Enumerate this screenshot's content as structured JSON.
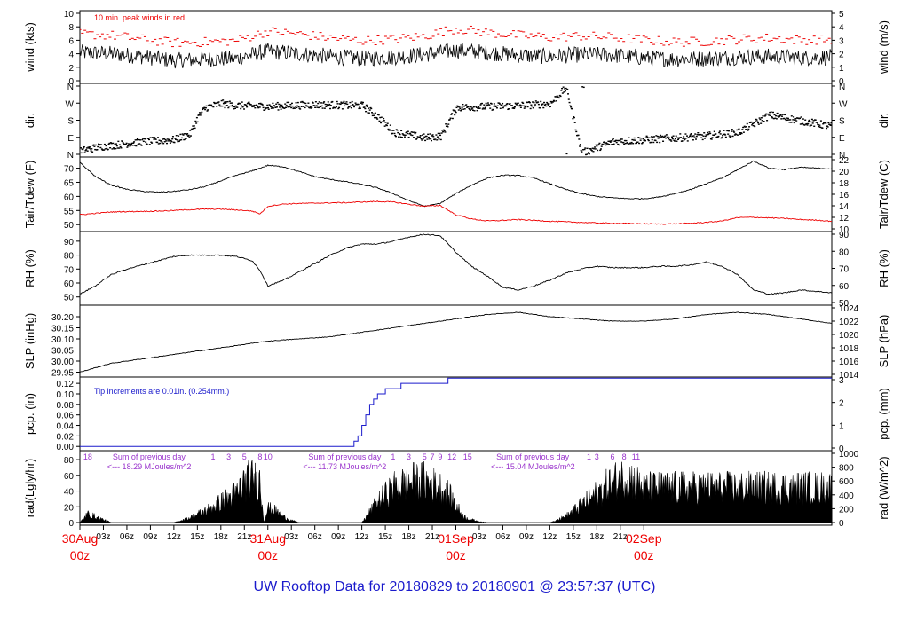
{
  "title": "UW Rooftop Data for 20180829  to  20180901 @ 23:57:37  (UTC)",
  "colors": {
    "black": "#000000",
    "red": "#ee0000",
    "blue": "#1a1acc",
    "purple": "#9933cc"
  },
  "chart_data": {
    "type": "line",
    "x_range_hours": [
      0,
      96
    ],
    "x_tick_labels": [
      "03z",
      "06z",
      "09z",
      "12z",
      "15z",
      "18z",
      "21z",
      "03z",
      "06z",
      "09z",
      "12z",
      "15z",
      "18z",
      "21z",
      "03z",
      "06z",
      "09z",
      "12z",
      "15z",
      "18z",
      "21z"
    ],
    "x_tick_hours": [
      3,
      6,
      9,
      12,
      15,
      18,
      21,
      27,
      30,
      33,
      36,
      39,
      42,
      45,
      51,
      54,
      57,
      60,
      63,
      66,
      69
    ],
    "day_labels": [
      {
        "date": "30Aug",
        "hour": "00z",
        "at": 0
      },
      {
        "date": "31Aug",
        "hour": "00z",
        "at": 24
      },
      {
        "date": "01Sep",
        "hour": "00z",
        "at": 48
      },
      {
        "date": "02Sep",
        "hour": "00z",
        "at": 72
      }
    ],
    "panels": [
      {
        "id": "wind",
        "left_label": "wind (kts)",
        "right_label": "wind (m/s)",
        "left_ticks": [
          "0",
          "2",
          "4",
          "6",
          "8",
          "10"
        ],
        "left_range": [
          0,
          10
        ],
        "right_ticks": [
          "0",
          "1",
          "2",
          "3",
          "4",
          "5"
        ],
        "annotation": "10 min. peak winds in red",
        "series": [
          {
            "name": "wind speed",
            "color": "#000000",
            "x": [
              0,
              4,
              8,
              12,
              16,
              20,
              24,
              28,
              32,
              36,
              40,
              44,
              48,
              52,
              56,
              60,
              64,
              68,
              72,
              76,
              80,
              84,
              88,
              92,
              96
            ],
            "y": [
              4.2,
              4.0,
              3.6,
              3.0,
              3.2,
              3.3,
              4.4,
              4.0,
              3.6,
              3.3,
              3.5,
              3.9,
              4.5,
              4.2,
              3.8,
              3.6,
              3.9,
              3.8,
              3.4,
              3.2,
              3.3,
              3.5,
              3.6,
              3.4,
              3.5
            ]
          },
          {
            "name": "10 min. peak",
            "color": "#ee0000",
            "x": [
              0,
              4,
              8,
              12,
              16,
              20,
              24,
              28,
              32,
              36,
              40,
              44,
              48,
              52,
              56,
              60,
              64,
              68,
              72,
              76,
              80,
              84,
              88,
              92,
              96
            ],
            "y": [
              6.8,
              6.6,
              6.0,
              5.5,
              5.6,
              5.8,
              7.2,
              6.8,
              6.2,
              5.8,
              6.0,
              6.5,
              7.6,
              7.0,
              6.6,
              6.3,
              6.5,
              6.3,
              5.9,
              5.6,
              5.7,
              6.0,
              6.2,
              5.9,
              6.0
            ]
          }
        ]
      },
      {
        "id": "dir",
        "left_label": "dir.",
        "right_label": "dir.",
        "left_ticks": [
          "N",
          "E",
          "S",
          "W",
          "N"
        ],
        "left_range": [
          0,
          360
        ],
        "right_ticks": [
          "N",
          "E",
          "S",
          "W",
          "N"
        ],
        "series": [
          {
            "name": "wind direction",
            "color": "#000000",
            "x": [
              0,
              2,
              4,
              8,
              12,
              14,
              15,
              16,
              18,
              20,
              24,
              30,
              36,
              38,
              40,
              44,
              46,
              48,
              52,
              56,
              58,
              60,
              62,
              64,
              68,
              72,
              76,
              80,
              84,
              88,
              92,
              96
            ],
            "y": [
              20,
              40,
              50,
              70,
              80,
              110,
              200,
              250,
              270,
              260,
              255,
              265,
              260,
              200,
              120,
              90,
              100,
              250,
              255,
              260,
              265,
              270,
              355,
              10,
              70,
              80,
              90,
              100,
              120,
              210,
              180,
              150
            ]
          }
        ]
      },
      {
        "id": "temp",
        "left_label": "Tair/Tdew (F)",
        "right_label": "Tair/Tdew (C)",
        "left_ticks": [
          "50",
          "55",
          "60",
          "65",
          "70"
        ],
        "left_range": [
          48.5,
          73
        ],
        "right_ticks": [
          "10",
          "12",
          "14",
          "16",
          "18",
          "20",
          "22"
        ],
        "series": [
          {
            "name": "Tair",
            "color": "#000000",
            "x": [
              0,
              2,
              4,
              6,
              8,
              10,
              12,
              14,
              16,
              18,
              20,
              22,
              24,
              26,
              28,
              30,
              32,
              34,
              36,
              38,
              40,
              42,
              44,
              46,
              48,
              50,
              52,
              54,
              56,
              58,
              60,
              62,
              64,
              66,
              68,
              70,
              72,
              74,
              76,
              78,
              80,
              82,
              84,
              86,
              88,
              90,
              92,
              94,
              96
            ],
            "y": [
              72,
              67,
              64,
              62.5,
              61.8,
              61.5,
              61.8,
              62.4,
              63.5,
              65.5,
              67.5,
              69,
              71,
              70.5,
              68.8,
              67,
              66,
              65.2,
              64.2,
              63,
              61,
              58.5,
              56.5,
              57.5,
              61,
              64,
              66.5,
              67.5,
              67.4,
              66.5,
              64.5,
              62.5,
              61,
              60,
              59.5,
              59.2,
              59.2,
              59.8,
              61,
              62.5,
              64.5,
              66.5,
              69.5,
              72.5,
              70,
              69.5,
              70.3,
              70,
              69.8
            ]
          },
          {
            "name": "Tdew",
            "color": "#ee0000",
            "x": [
              0,
              2,
              4,
              6,
              8,
              10,
              12,
              14,
              16,
              18,
              20,
              22,
              23,
              24,
              26,
              28,
              30,
              32,
              34,
              36,
              38,
              40,
              42,
              44,
              46,
              48,
              50,
              52,
              54,
              56,
              58,
              60,
              62,
              64,
              66,
              68,
              70,
              72,
              74,
              76,
              78,
              80,
              82,
              84,
              86,
              88,
              90,
              92,
              94,
              96
            ],
            "y": [
              53.5,
              54,
              54.5,
              54.6,
              54.7,
              54.8,
              55,
              55.3,
              55.5,
              55.5,
              55.2,
              54.8,
              53.8,
              56.5,
              57.3,
              57.5,
              57.6,
              57.7,
              57.8,
              58,
              58.2,
              58,
              57.2,
              56.5,
              56.8,
              53.5,
              52,
              51.3,
              51.5,
              51.8,
              51.5,
              51.2,
              51,
              50.8,
              50.6,
              50.5,
              50.4,
              50.3,
              50.2,
              50.3,
              50.5,
              50.8,
              51.3,
              52.5,
              52.6,
              52.4,
              52.2,
              51.8,
              51.6,
              51.2
            ]
          }
        ]
      },
      {
        "id": "rh",
        "left_label": "RH (%)",
        "right_label": "RH (%)",
        "left_ticks": [
          "50",
          "60",
          "70",
          "80",
          "90"
        ],
        "left_range": [
          46,
          95
        ],
        "right_ticks": [
          "50",
          "60",
          "70",
          "80",
          "90"
        ],
        "series": [
          {
            "name": "RH",
            "color": "#000000",
            "x": [
              0,
              2,
              4,
              6,
              8,
              10,
              12,
              14,
              16,
              18,
              20,
              22,
              23,
              24,
              26,
              28,
              30,
              32,
              34,
              36,
              38,
              40,
              42,
              44,
              46,
              48,
              50,
              52,
              54,
              56,
              58,
              60,
              62,
              64,
              66,
              68,
              70,
              72,
              74,
              76,
              78,
              80,
              82,
              84,
              86,
              88,
              90,
              92,
              94,
              96
            ],
            "y": [
              52,
              58,
              66,
              70,
              73,
              76,
              79,
              80,
              80,
              80,
              79,
              76,
              69,
              58,
              62,
              68,
              74,
              80,
              85,
              88,
              88,
              90,
              93,
              95,
              94,
              82,
              72,
              65,
              57,
              55,
              58,
              62,
              67,
              70,
              72,
              71,
              71,
              71,
              72,
              72,
              73,
              75,
              72,
              66,
              55,
              52,
              53,
              55,
              54,
              53
            ]
          }
        ]
      },
      {
        "id": "slp",
        "left_label": "SLP (inHg)",
        "right_label": "SLP (hPa)",
        "left_ticks": [
          "29.95",
          "30.00",
          "30.05",
          "30.10",
          "30.15",
          "30.20"
        ],
        "left_range": [
          29.94,
          30.24
        ],
        "right_ticks": [
          "1014",
          "1016",
          "1018",
          "1020",
          "1022",
          "1024"
        ],
        "series": [
          {
            "name": "SLP",
            "color": "#000000",
            "x": [
              0,
              4,
              8,
              12,
              16,
              20,
              24,
              28,
              32,
              36,
              40,
              44,
              48,
              52,
              56,
              60,
              64,
              68,
              72,
              76,
              80,
              84,
              88,
              92,
              96
            ],
            "y": [
              29.95,
              29.99,
              30.01,
              30.03,
              30.05,
              30.07,
              30.09,
              30.1,
              30.11,
              30.13,
              30.15,
              30.17,
              30.19,
              30.21,
              30.22,
              30.2,
              30.19,
              30.18,
              30.18,
              30.19,
              30.21,
              30.22,
              30.21,
              30.19,
              30.17
            ]
          }
        ]
      },
      {
        "id": "pcp",
        "left_label": "pcp. (in)",
        "right_label": "pcp. (mm)",
        "left_ticks": [
          "0.00",
          "0.02",
          "0.04",
          "0.06",
          "0.08",
          "0.10",
          "0.12"
        ],
        "left_range": [
          -0.003,
          0.127
        ],
        "right_ticks": [
          "0",
          "1",
          "2",
          "3"
        ],
        "annotation": "Tip increments are 0.01in. (0.254mm.)",
        "series": [
          {
            "name": "precipitation",
            "color": "#1a1acc",
            "x": [
              0,
              34.5,
              35,
              35.5,
              36,
              36.5,
              37,
              37.5,
              38,
              38.5,
              39,
              40,
              41,
              46,
              47,
              96
            ],
            "y": [
              0,
              0,
              0.01,
              0.02,
              0.04,
              0.06,
              0.08,
              0.09,
              0.1,
              0.1,
              0.11,
              0.11,
              0.12,
              0.12,
              0.13,
              0.13
            ]
          }
        ]
      },
      {
        "id": "rad",
        "left_label": "rad(Lgly/hr)",
        "right_label": "rad (W/m^2)",
        "left_ticks": [
          "0",
          "20",
          "40",
          "60",
          "80"
        ],
        "left_range": [
          0,
          88
        ],
        "right_ticks": [
          "0",
          "200",
          "400",
          "600",
          "800",
          "1000"
        ],
        "series": [
          {
            "name": "solar radiation",
            "color": "#000000",
            "x": [
              0,
              1,
              2,
              3,
              4,
              12,
              14,
              16,
              18,
              20,
              21,
              22,
              23,
              23.5,
              24,
              25,
              26,
              27,
              28,
              36,
              38,
              40,
              42,
              44,
              46,
              47,
              48,
              49,
              50,
              51,
              52,
              60,
              62,
              64,
              66,
              68,
              70,
              71,
              72
            ],
            "y": [
              0,
              15,
              10,
              5,
              0,
              0,
              8,
              20,
              35,
              50,
              70,
              75,
              70,
              0,
              25,
              20,
              10,
              4,
              0,
              0,
              35,
              60,
              70,
              72,
              60,
              50,
              30,
              10,
              5,
              2,
              0,
              0,
              10,
              30,
              50,
              70,
              80,
              70,
              60
            ]
          }
        ],
        "top_markers": [
          "18",
          "1",
          "3",
          "5",
          "8",
          "10",
          "1",
          "3",
          "5",
          "7",
          "9",
          "12",
          "15",
          "1",
          "3",
          "6",
          "8",
          "11"
        ],
        "top_marker_hours": [
          1,
          17,
          19,
          21,
          23,
          24,
          40,
          42,
          44,
          45,
          46,
          47.5,
          49.5,
          65,
          66,
          68,
          69.5,
          71
        ],
        "annotations": [
          {
            "line1": "Sum of previous day",
            "line2": "<--- 18.29 MJoules/m^2",
            "at": 1
          },
          {
            "line1": "Sum of previous day",
            "line2": "<--- 11.73 MJoules/m^2",
            "at": 26
          },
          {
            "line1": "Sum of previous day",
            "line2": "<--- 15.04 MJoules/m^2",
            "at": 50
          }
        ]
      }
    ]
  }
}
